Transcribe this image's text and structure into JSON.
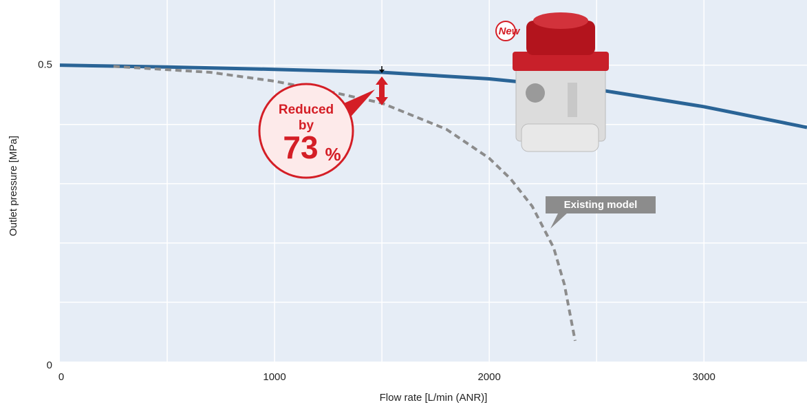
{
  "chart_data": {
    "type": "line",
    "x_label": "Flow rate [L/min (ANR)]",
    "y_label": "Outlet pressure [MPa]",
    "xlim": [
      0,
      3480
    ],
    "ylim": [
      0,
      0.61
    ],
    "xticks": [
      0,
      1000,
      2000,
      3000
    ],
    "yticks": [
      0,
      0.5
    ],
    "xgrid": [
      500,
      1000,
      1500,
      2000,
      2500,
      3000
    ],
    "ygrid": [
      0.1,
      0.2,
      0.3,
      0.4,
      0.5
    ],
    "series": [
      {
        "color": "#2a6496",
        "style": "solid",
        "x": [
          0,
          500,
          1000,
          1500,
          2000,
          2500,
          3000,
          3480
        ],
        "values": [
          0.5,
          0.497,
          0.493,
          0.488,
          0.477,
          0.459,
          0.43,
          0.395
        ]
      },
      {
        "name": "Existing model",
        "color": "#8c8c8c",
        "style": "dashed",
        "x": [
          250,
          700,
          1000,
          1300,
          1500,
          1800,
          2000,
          2100,
          2200,
          2300,
          2350,
          2400
        ],
        "values": [
          0.498,
          0.488,
          0.473,
          0.452,
          0.436,
          0.392,
          0.343,
          0.308,
          0.262,
          0.192,
          0.13,
          0.035
        ]
      }
    ],
    "annotation": {
      "line1": "Reduced",
      "line2": "by",
      "number": "73",
      "unit": "%"
    },
    "badge": "New"
  }
}
